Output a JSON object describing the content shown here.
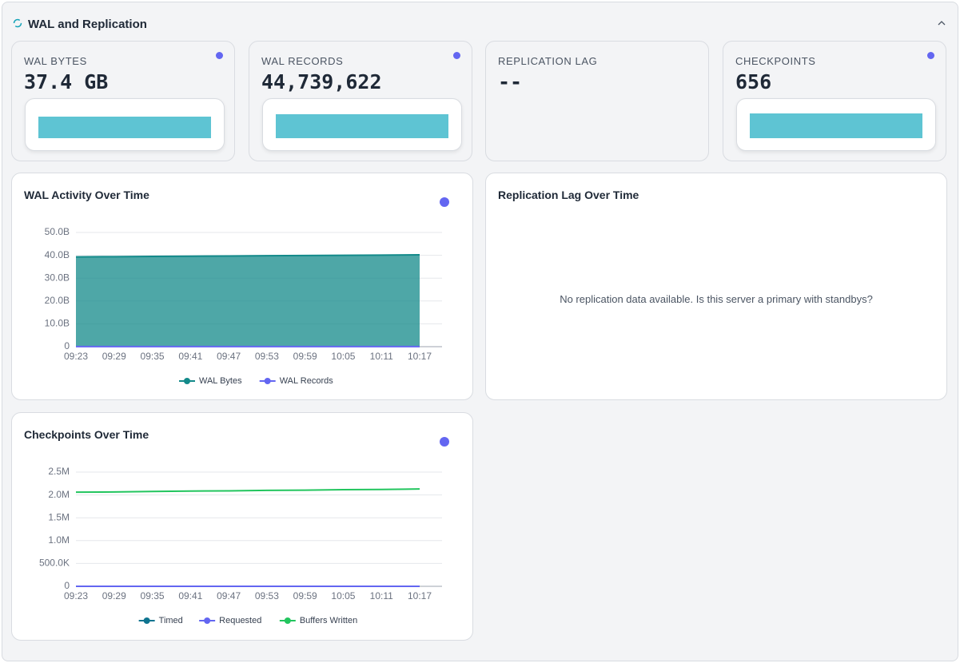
{
  "header": {
    "title": "WAL and Replication"
  },
  "stats": [
    {
      "label": "WAL BYTES",
      "value": "37.4 GB"
    },
    {
      "label": "WAL RECORDS",
      "value": "44,739,622"
    },
    {
      "label": "REPLICATION LAG",
      "value": "--"
    },
    {
      "label": "CHECKPOINTS",
      "value": "656"
    }
  ],
  "charts": [
    {
      "type": "area",
      "title": "WAL Activity Over Time",
      "categories": [
        "09:23",
        "09:29",
        "09:35",
        "09:41",
        "09:47",
        "09:53",
        "09:59",
        "10:05",
        "10:11",
        "10:17"
      ],
      "series": [
        {
          "name": "WAL Bytes",
          "color": "#138a8a",
          "values": [
            39.3,
            39.4,
            39.5,
            39.6,
            39.7,
            39.8,
            39.9,
            40.0,
            40.1,
            40.2
          ]
        },
        {
          "name": "WAL Records",
          "color": "#6366f1",
          "values": [
            0.04,
            0.04,
            0.04,
            0.04,
            0.04,
            0.04,
            0.04,
            0.04,
            0.04,
            0.04
          ]
        }
      ],
      "ylim": [
        0,
        50
      ],
      "yticks": [
        0,
        {
          "value": 10,
          "label": "10.0B"
        },
        {
          "value": 20,
          "label": "20.0B"
        },
        {
          "value": 30,
          "label": "30.0B"
        },
        {
          "value": 40,
          "label": "40.0B"
        },
        {
          "value": 50,
          "label": "50.0B"
        }
      ],
      "grid": true,
      "legend": "bottom"
    },
    {
      "title": "Replication Lag Over Time",
      "message": "No replication data available. Is this server a primary with standbys?"
    },
    {
      "type": "line",
      "title": "Checkpoints Over Time",
      "categories": [
        "09:23",
        "09:29",
        "09:35",
        "09:41",
        "09:47",
        "09:53",
        "09:59",
        "10:05",
        "10:11",
        "10:17"
      ],
      "series": [
        {
          "name": "Timed",
          "color": "#0e7490",
          "values": [
            640,
            642,
            644,
            646,
            648,
            650,
            652,
            654,
            655,
            656
          ]
        },
        {
          "name": "Requested",
          "color": "#6366f1",
          "values": [
            10,
            10,
            10,
            10,
            10,
            10,
            10,
            10,
            10,
            10
          ]
        },
        {
          "name": "Buffers Written",
          "color": "#22c55e",
          "values": [
            2060000,
            2065000,
            2075000,
            2085000,
            2090000,
            2100000,
            2105000,
            2115000,
            2120000,
            2130000
          ]
        }
      ],
      "ylim": [
        0,
        2500000
      ],
      "yticks": [
        0,
        {
          "value": 500000,
          "label": "500.0K"
        },
        {
          "value": 1000000,
          "label": "1.0M"
        },
        {
          "value": 1500000,
          "label": "1.5M"
        },
        {
          "value": 2000000,
          "label": "2.0M"
        },
        {
          "value": 2500000,
          "label": "2.5M"
        }
      ],
      "grid": true,
      "legend": "bottom"
    }
  ]
}
